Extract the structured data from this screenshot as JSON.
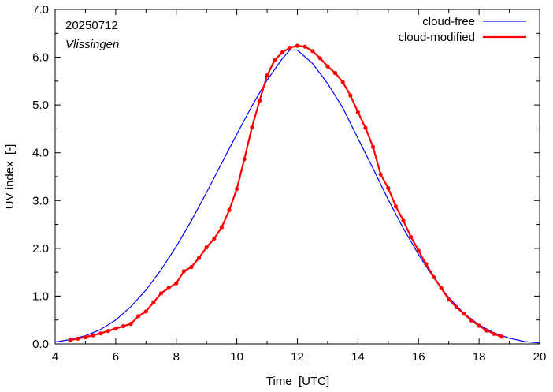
{
  "chart_data": {
    "type": "line",
    "date_label": "20250712",
    "location": "Vlissingen",
    "xlabel": "Time  [UTC]",
    "ylabel": "UV index  [-]",
    "xlim": [
      4,
      20
    ],
    "ylim": [
      0,
      7
    ],
    "xticks": [
      "4",
      "6",
      "8",
      "10",
      "12",
      "14",
      "16",
      "18",
      "20"
    ],
    "yticks": [
      "0.0",
      "1.0",
      "2.0",
      "3.0",
      "4.0",
      "5.0",
      "6.0",
      "7.0"
    ],
    "grid": false,
    "legend_position": "top-right",
    "series": [
      {
        "name": "cloud-free",
        "color": "#0000ff",
        "markers": false,
        "x": [
          4.0,
          4.5,
          5.0,
          5.5,
          6.0,
          6.5,
          7.0,
          7.5,
          8.0,
          8.5,
          9.0,
          9.5,
          10.0,
          10.5,
          11.0,
          11.5,
          11.75,
          12.0,
          12.5,
          13.0,
          13.5,
          14.0,
          14.5,
          15.0,
          15.5,
          16.0,
          16.5,
          17.0,
          17.5,
          18.0,
          18.5,
          19.0,
          19.5,
          20.0
        ],
        "y": [
          0.04,
          0.09,
          0.17,
          0.3,
          0.5,
          0.78,
          1.13,
          1.55,
          2.04,
          2.58,
          3.17,
          3.78,
          4.39,
          4.98,
          5.52,
          5.97,
          6.15,
          6.15,
          5.87,
          5.45,
          4.94,
          4.3,
          3.67,
          3.02,
          2.42,
          1.87,
          1.38,
          0.97,
          0.64,
          0.4,
          0.23,
          0.12,
          0.05,
          0.02
        ]
      },
      {
        "name": "cloud-modified",
        "color": "#ff0000",
        "markers": true,
        "x": [
          4.5,
          4.75,
          5.0,
          5.25,
          5.5,
          5.75,
          6.0,
          6.25,
          6.5,
          6.75,
          7.0,
          7.25,
          7.5,
          7.75,
          8.0,
          8.25,
          8.5,
          8.75,
          9.0,
          9.25,
          9.5,
          9.75,
          10.0,
          10.25,
          10.5,
          10.75,
          11.0,
          11.25,
          11.5,
          11.75,
          12.0,
          12.25,
          12.5,
          12.75,
          13.0,
          13.25,
          13.5,
          13.75,
          14.0,
          14.25,
          14.5,
          14.75,
          15.0,
          15.25,
          15.5,
          15.75,
          16.0,
          16.25,
          16.5,
          16.75,
          17.0,
          17.25,
          17.5,
          17.75,
          18.0,
          18.25,
          18.5,
          18.75
        ],
        "y": [
          0.08,
          0.11,
          0.14,
          0.18,
          0.22,
          0.27,
          0.32,
          0.37,
          0.42,
          0.58,
          0.68,
          0.87,
          1.06,
          1.17,
          1.27,
          1.52,
          1.61,
          1.8,
          2.02,
          2.2,
          2.44,
          2.8,
          3.24,
          3.87,
          4.53,
          5.09,
          5.62,
          5.94,
          6.1,
          6.2,
          6.24,
          6.22,
          6.13,
          5.98,
          5.81,
          5.67,
          5.48,
          5.2,
          4.85,
          4.52,
          4.12,
          3.55,
          3.26,
          2.88,
          2.58,
          2.24,
          1.95,
          1.67,
          1.4,
          1.17,
          0.93,
          0.77,
          0.63,
          0.49,
          0.38,
          0.28,
          0.21,
          0.15
        ]
      }
    ]
  }
}
